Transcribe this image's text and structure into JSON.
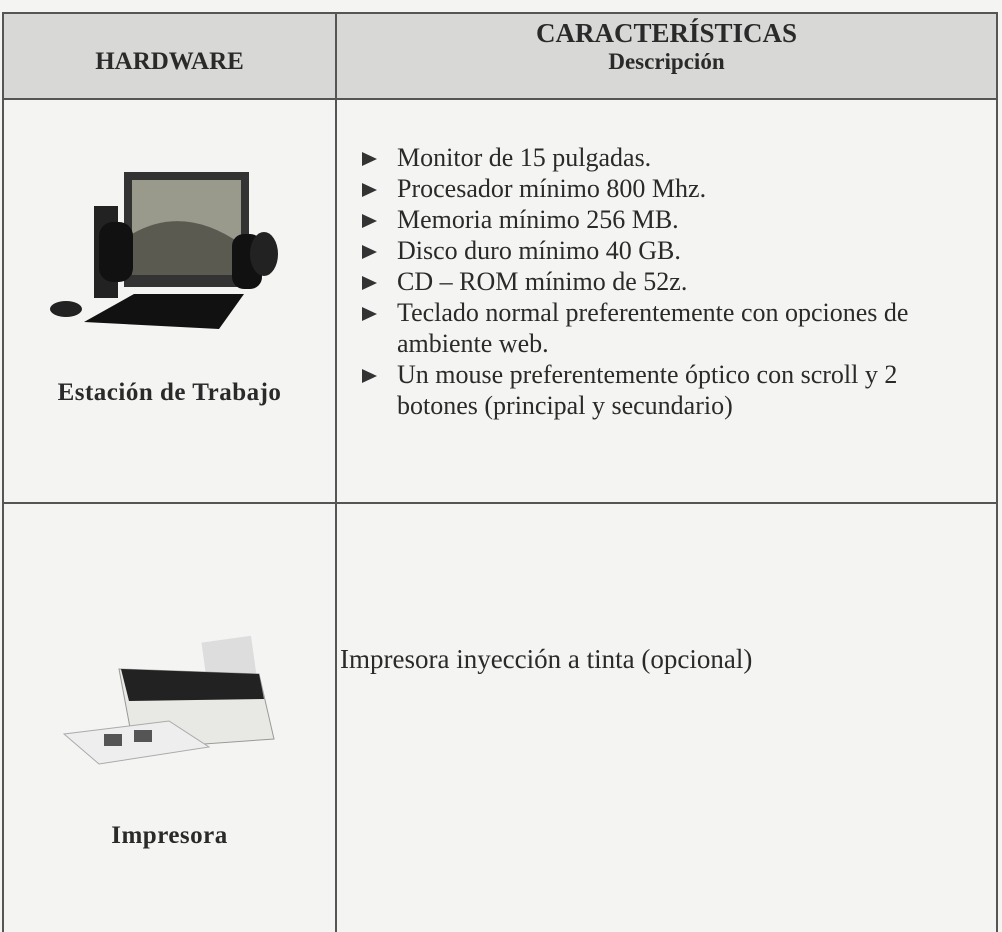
{
  "table": {
    "header": {
      "hardware": "HARDWARE",
      "characteristics": "CARACTERÍSTICAS",
      "description": "Descripción"
    },
    "rows": [
      {
        "label": "Estación de Trabajo",
        "items": [
          "Monitor de 15 pulgadas.",
          "Procesador mínimo 800 Mhz.",
          "Memoria mínimo 256 MB.",
          "Disco duro mínimo 40 GB.",
          "CD – ROM mínimo de 52z.",
          "Teclado normal preferentemente con opciones de ambiente web.",
          "Un mouse preferentemente óptico con scroll y 2 botones (principal y secundario)"
        ]
      },
      {
        "label": "Impresora",
        "text": "Impresora inyección a tinta (opcional)"
      }
    ]
  }
}
